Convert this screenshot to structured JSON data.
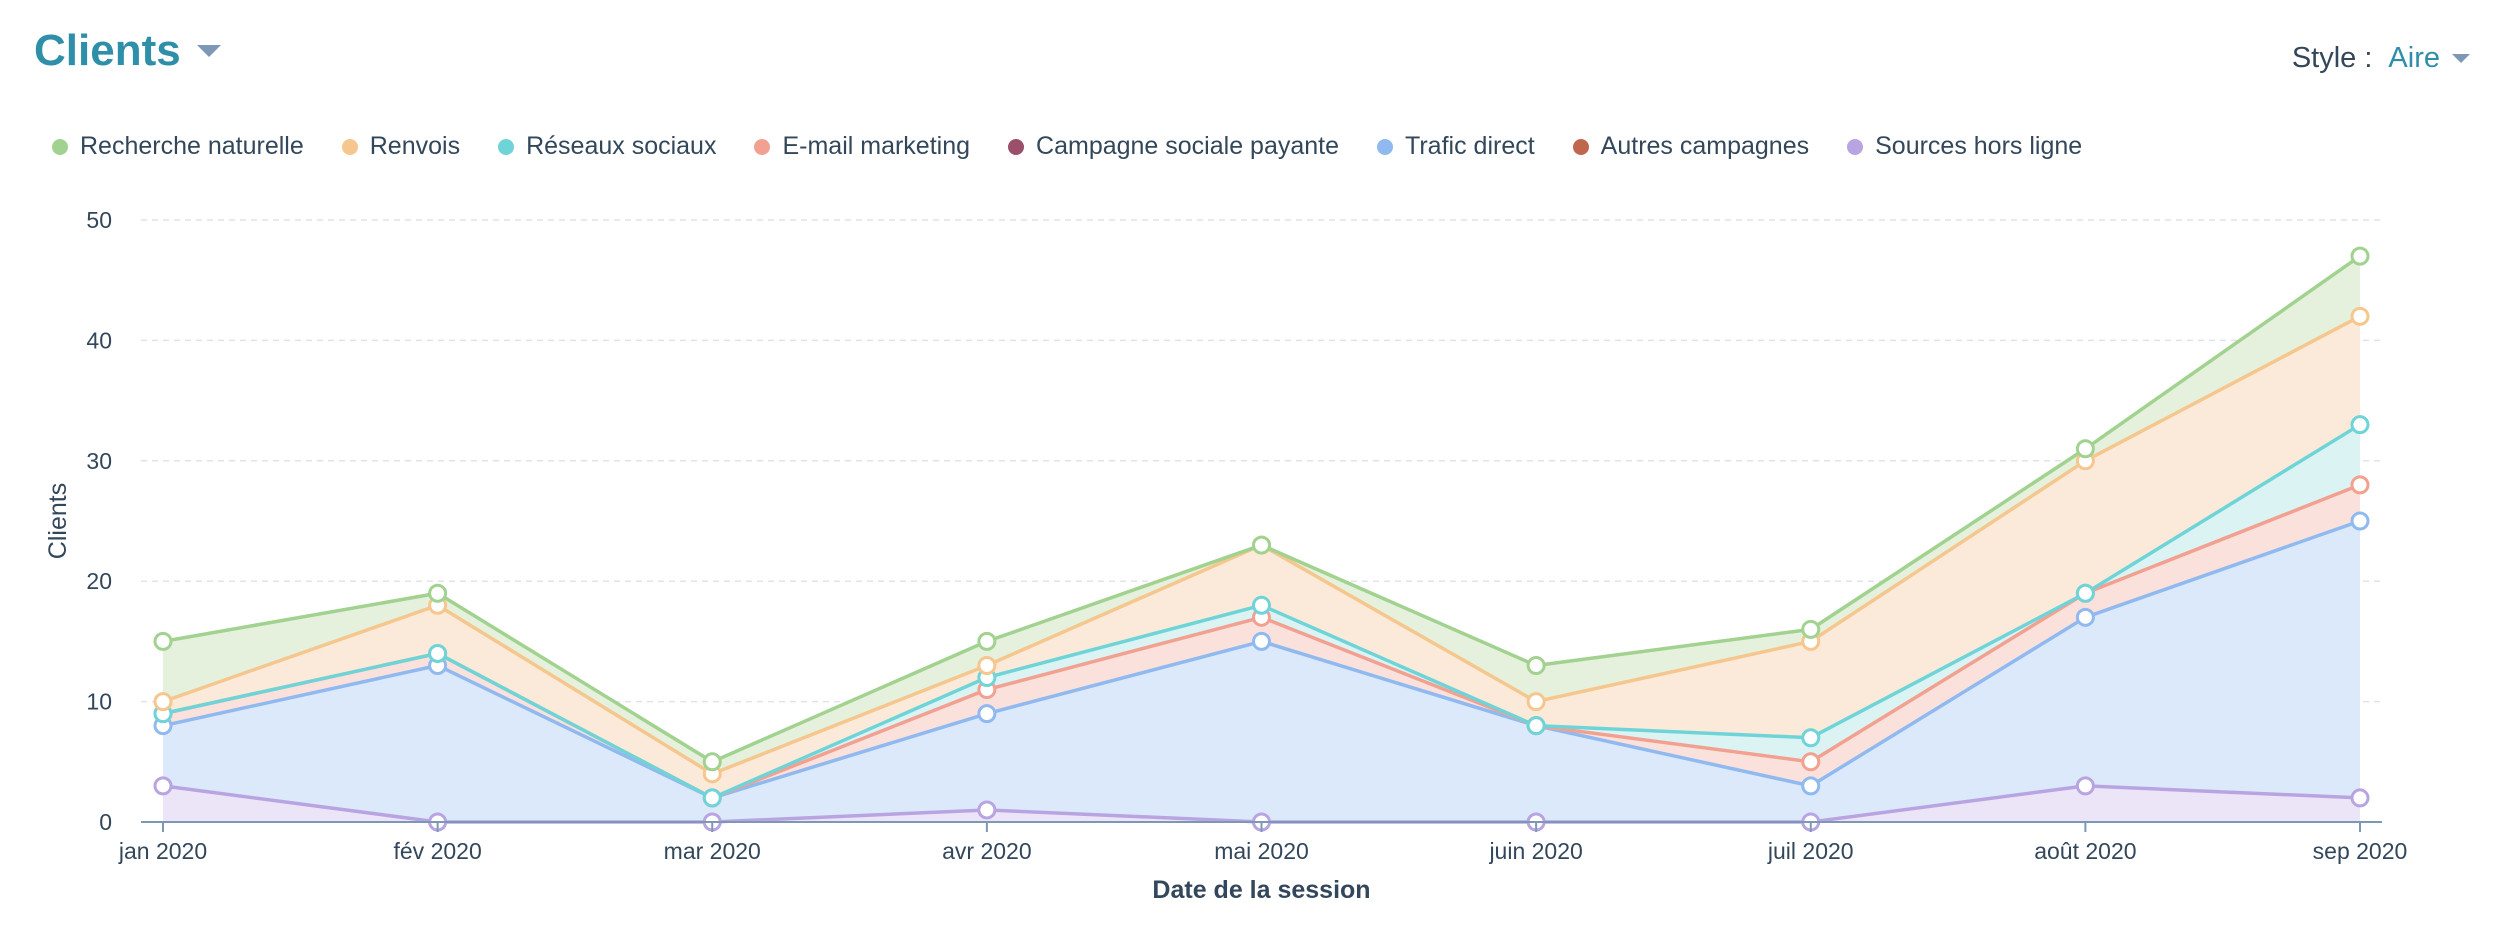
{
  "header": {
    "title": "Clients",
    "style_label": "Style :",
    "style_value": "Aire"
  },
  "colors": {
    "title": "#2f8fa8",
    "grid": "#dfe3eb",
    "axis": "#7c98b6"
  },
  "icons": {
    "title_dropdown": "chevron-down-icon",
    "style_dropdown": "chevron-down-icon"
  },
  "chart_data": {
    "type": "area",
    "stacked": true,
    "title": "",
    "xlabel": "Date de la session",
    "ylabel": "Clients",
    "ylim": [
      0,
      50
    ],
    "yticks": [
      0,
      10,
      20,
      30,
      40,
      50
    ],
    "grid": true,
    "legend_position": "top-left",
    "categories": [
      "jan 2020",
      "fév 2020",
      "mar 2020",
      "avr 2020",
      "mai 2020",
      "juin 2020",
      "juil 2020",
      "août 2020",
      "sep 2020"
    ],
    "series": [
      {
        "name": "Recherche naturelle",
        "color": "#a2d28f",
        "fill": "#e5f0dd",
        "values": [
          5,
          1,
          1,
          2,
          0,
          3,
          1,
          1,
          5
        ]
      },
      {
        "name": "Renvois",
        "color": "#f5c78e",
        "fill": "#fbeada",
        "values": [
          1,
          4,
          2,
          1,
          5,
          2,
          8,
          11,
          9
        ]
      },
      {
        "name": "Réseaux sociaux",
        "color": "#6fd4d8",
        "fill": "#dbf3f3",
        "values": [
          0,
          0,
          0,
          1,
          1,
          0,
          2,
          0,
          5
        ]
      },
      {
        "name": "E-mail marketing",
        "color": "#f2a191",
        "fill": "#fbe1dc",
        "values": [
          1,
          1,
          0,
          2,
          2,
          0,
          2,
          2,
          3
        ]
      },
      {
        "name": "Campagne sociale payante",
        "color": "#9b4f6a",
        "fill": "#efe0e6",
        "values": [
          0,
          0,
          0,
          0,
          0,
          0,
          0,
          0,
          0
        ]
      },
      {
        "name": "Trafic direct",
        "color": "#8fb9ef",
        "fill": "#dbe9fb",
        "values": [
          5,
          13,
          2,
          8,
          15,
          8,
          3,
          14,
          23
        ]
      },
      {
        "name": "Autres campagnes",
        "color": "#c0664d",
        "fill": "#f1e0da",
        "values": [
          0,
          0,
          0,
          0,
          0,
          0,
          0,
          0,
          0
        ]
      },
      {
        "name": "Sources hors ligne",
        "color": "#b9a4e2",
        "fill": "#ece5f8",
        "values": [
          3,
          0,
          0,
          1,
          0,
          0,
          0,
          3,
          2
        ]
      }
    ]
  }
}
